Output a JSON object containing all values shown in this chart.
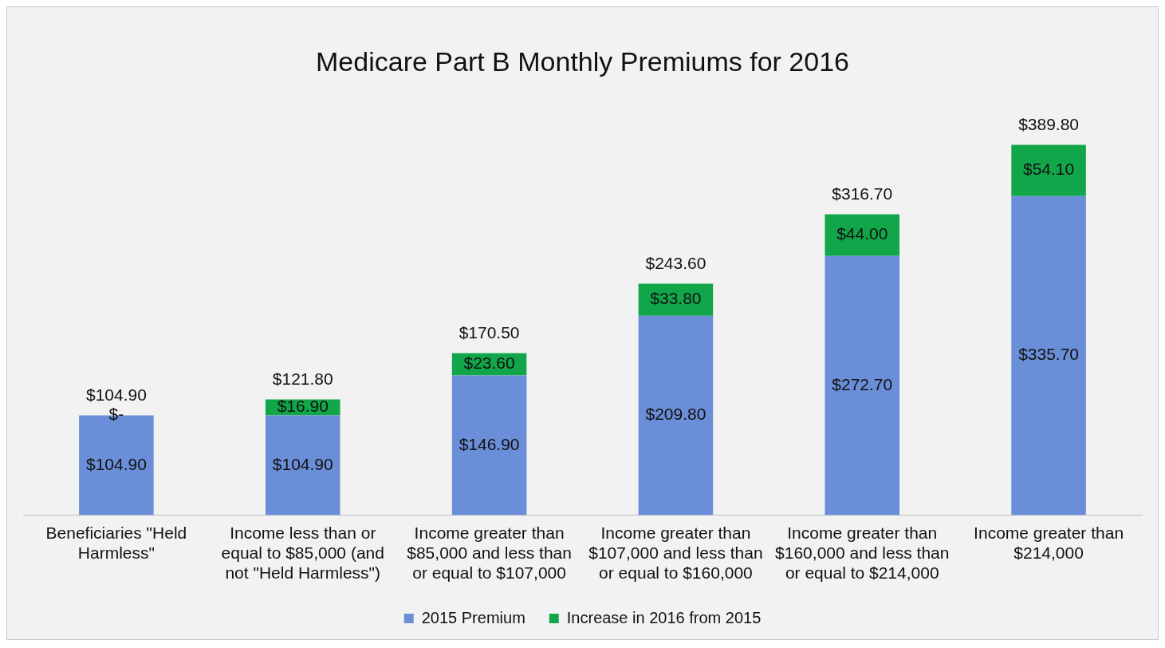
{
  "chart_data": {
    "type": "bar",
    "title": "Medicare Part B Monthly Premiums for 2016",
    "stacked": true,
    "legend": "bottom",
    "categories": [
      "Beneficiaries \"Held Harmless\"",
      "Income less than or equal to $85,000 (and not \"Held Harmless\")",
      "Income greater than $85,000 and less than or equal to $107,000",
      "Income greater than $107,000 and less than or equal to $160,000",
      "Income greater than $160,000 and less than or equal to $214,000",
      "Income greater than $214,000"
    ],
    "series": [
      {
        "name": "2015 Premium",
        "color": "#6a8ed7",
        "values": [
          104.9,
          104.9,
          146.9,
          209.8,
          272.7,
          335.7
        ],
        "value_labels": [
          "$104.90",
          "$104.90",
          "$146.90",
          "$209.80",
          "$272.70",
          "$335.70"
        ]
      },
      {
        "name": "Increase in 2016 from 2015",
        "color": "#12a64a",
        "values": [
          0,
          16.9,
          23.6,
          33.8,
          44.0,
          54.1
        ],
        "value_labels": [
          "$-",
          "$16.90",
          "$23.60",
          "$33.80",
          "$44.00",
          "$54.10"
        ]
      }
    ],
    "totals": [
      "$104.90",
      "$121.80",
      "$170.50",
      "$243.60",
      "$316.70",
      "$389.80"
    ]
  }
}
